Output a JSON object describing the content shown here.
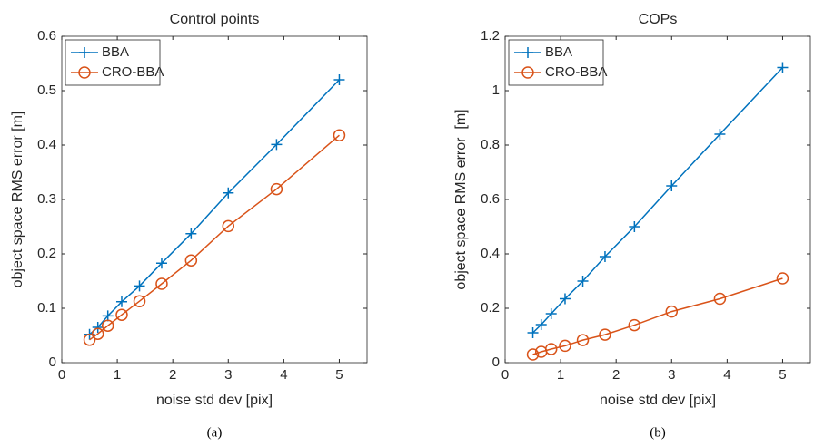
{
  "chart_data": [
    {
      "type": "line",
      "title": "Control points",
      "xlabel": "noise std dev [pix]",
      "ylabel": "object space RMS error [m]",
      "caption": "(a)",
      "x": [
        0.5,
        0.65,
        0.83,
        1.08,
        1.4,
        1.8,
        2.33,
        3.0,
        3.87,
        5.0
      ],
      "series": [
        {
          "name": "BBA",
          "color": "#0072BD",
          "marker": "plus",
          "values": [
            0.052,
            0.065,
            0.086,
            0.112,
            0.141,
            0.183,
            0.237,
            0.312,
            0.401,
            0.52
          ]
        },
        {
          "name": "CRO-BBA",
          "color": "#D95319",
          "marker": "circle",
          "values": [
            0.042,
            0.053,
            0.068,
            0.088,
            0.113,
            0.145,
            0.188,
            0.251,
            0.319,
            0.418
          ]
        }
      ],
      "xlim": [
        0,
        5.5
      ],
      "xticks": [
        0,
        1,
        2,
        3,
        4,
        5
      ],
      "ylim": [
        0,
        0.6
      ],
      "yticks": [
        0,
        0.1,
        0.2,
        0.3,
        0.4,
        0.5,
        0.6
      ],
      "grid": false,
      "legend": "upper-left"
    },
    {
      "type": "line",
      "title": "COPs",
      "xlabel": "noise std dev [pix]",
      "ylabel": "object space RMS error  [m]",
      "caption": "(b)",
      "x": [
        0.5,
        0.65,
        0.83,
        1.08,
        1.4,
        1.8,
        2.33,
        3.0,
        3.87,
        5.0
      ],
      "series": [
        {
          "name": "BBA",
          "color": "#0072BD",
          "marker": "plus",
          "values": [
            0.11,
            0.14,
            0.18,
            0.235,
            0.3,
            0.39,
            0.5,
            0.65,
            0.84,
            1.085
          ]
        },
        {
          "name": "CRO-BBA",
          "color": "#D95319",
          "marker": "circle",
          "values": [
            0.03,
            0.04,
            0.05,
            0.062,
            0.083,
            0.103,
            0.138,
            0.188,
            0.235,
            0.31
          ]
        }
      ],
      "xlim": [
        0,
        5.5
      ],
      "xticks": [
        0,
        1,
        2,
        3,
        4,
        5
      ],
      "ylim": [
        0,
        1.2
      ],
      "yticks": [
        0,
        0.2,
        0.4,
        0.6,
        0.8,
        1,
        1.2
      ],
      "grid": false,
      "legend": "upper-left"
    }
  ]
}
